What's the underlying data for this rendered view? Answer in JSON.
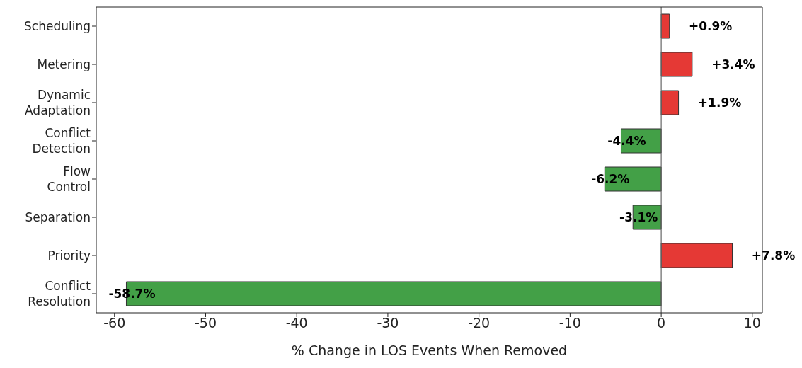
{
  "chart_data": {
    "type": "bar",
    "orientation": "horizontal",
    "xlabel": "% Change in LOS Events When Removed",
    "categories": [
      "Scheduling",
      "Metering",
      "Dynamic Adaptation",
      "Conflict Detection",
      "Flow Control",
      "Separation",
      "Priority",
      "Conflict Resolution"
    ],
    "values": [
      0.9,
      3.4,
      1.9,
      -4.4,
      -6.2,
      -3.1,
      7.8,
      -58.7
    ],
    "colors": [
      "#e53935",
      "#e53935",
      "#e53935",
      "#43a047",
      "#43a047",
      "#43a047",
      "#e53935",
      "#43a047"
    ],
    "value_labels": [
      "+0.9%",
      "+3.4%",
      "+1.9%",
      "-4.4%",
      "-6.2%",
      "-3.1%",
      "+7.8%",
      "-58.7%"
    ],
    "xlim": [
      -62.0,
      11.1
    ],
    "xticks": [
      -60,
      -50,
      -40,
      -30,
      -20,
      -10,
      0,
      10
    ],
    "ref_lines": [
      {
        "axis": "x",
        "value": 0,
        "color": "#666666"
      }
    ],
    "grid": false,
    "legend": false
  }
}
